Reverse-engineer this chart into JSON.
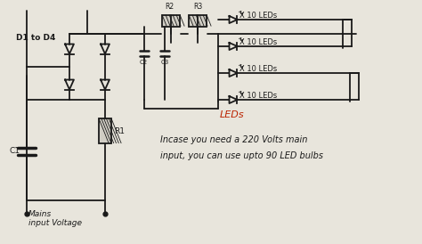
{
  "bg_color": "#e8e5dc",
  "line_color": "#1a1a1a",
  "red_color": "#bb2200",
  "label_d1d4": "D1 to D4",
  "label_c1": "C1",
  "label_c2": "C2",
  "label_c3": "C3",
  "label_r1": "R1",
  "label_r2": "R2",
  "label_r3": "R3",
  "label_mains": "Mains\ninput Voltage",
  "label_leds": "LEDs",
  "label_led1": "X 10 LEDs",
  "label_led2": "X 10 LEDs",
  "label_led3": "X 10 LEDs",
  "label_led4": "X 10 LEDs",
  "note_line1": "Incase you need a 220 Volts main",
  "note_line2": "input, you can use upto 90 LED bulbs"
}
